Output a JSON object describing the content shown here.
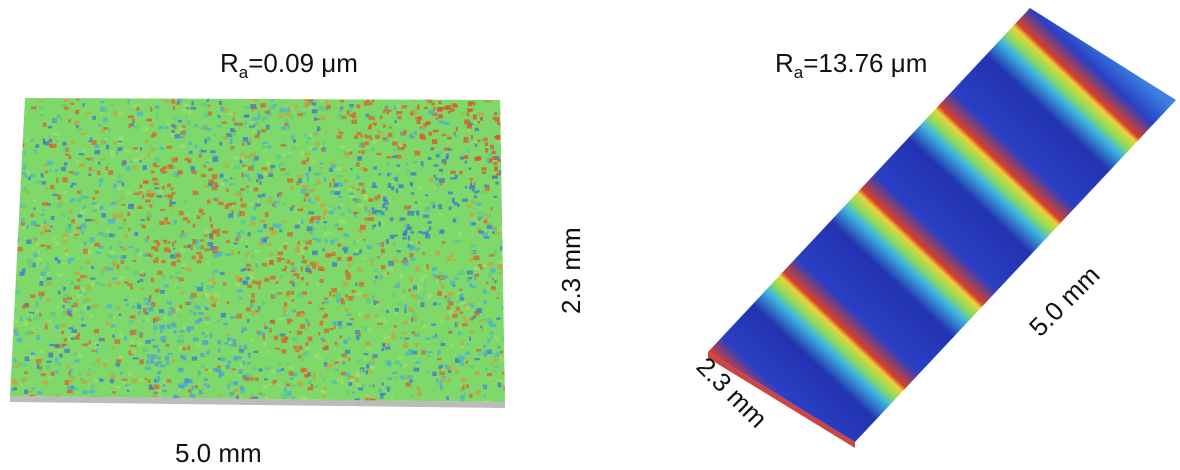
{
  "left_panel": {
    "roughness_symbol": "R",
    "roughness_subscript": "a",
    "roughness_value": "=0.09 μm",
    "width_label": "5.0 mm",
    "height_label": "2.3 mm"
  },
  "right_panel": {
    "roughness_symbol": "R",
    "roughness_subscript": "a",
    "roughness_value": "=13.76 μm",
    "length_label": "5.0 mm",
    "width_label": "2.3 mm"
  }
}
